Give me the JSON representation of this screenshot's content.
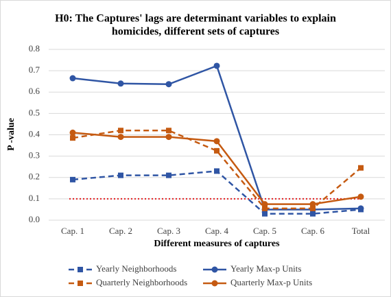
{
  "chart_data": {
    "type": "line",
    "title": [
      "H0: The Captures' lags are determinant variables to explain",
      "homicides, different sets of captures"
    ],
    "x_label": "Different measures of captures",
    "y_label": "P -value",
    "categories": [
      "Cap. 1",
      "Cap. 2",
      "Cap. 3",
      "Cap. 4",
      "Cap. 5",
      "Cap. 6",
      "Total"
    ],
    "ylim": [
      0,
      0.8
    ],
    "yticks": [
      {
        "value": 0,
        "label": "0.0"
      },
      0.1,
      0.2,
      0.3,
      0.4,
      0.5,
      0.6,
      0.7,
      0.8
    ],
    "grid": true,
    "hline": {
      "value": 0.1,
      "color": "#e31a1c"
    },
    "series": [
      {
        "name": "Yearly Neighborhoods",
        "color": "#2f55a4",
        "dashed": true,
        "marker": "square",
        "values": [
          0.19,
          0.21,
          0.21,
          0.23,
          0.03,
          0.03,
          0.05
        ]
      },
      {
        "name": "Yearly Max-p Units",
        "color": "#2f55a4",
        "dashed": false,
        "marker": "circle",
        "values": [
          0.665,
          0.64,
          0.637,
          0.723,
          0.05,
          0.05,
          0.055
        ]
      },
      {
        "name": "Quarterly Neighborhoods",
        "color": "#c55a11",
        "dashed": true,
        "marker": "square",
        "values": [
          0.385,
          0.42,
          0.42,
          0.325,
          0.055,
          0.055,
          0.245
        ]
      },
      {
        "name": "Quarterly Max-p Units",
        "color": "#c55a11",
        "dashed": false,
        "marker": "circle",
        "values": [
          0.41,
          0.39,
          0.39,
          0.37,
          0.075,
          0.075,
          0.11
        ]
      }
    ]
  }
}
